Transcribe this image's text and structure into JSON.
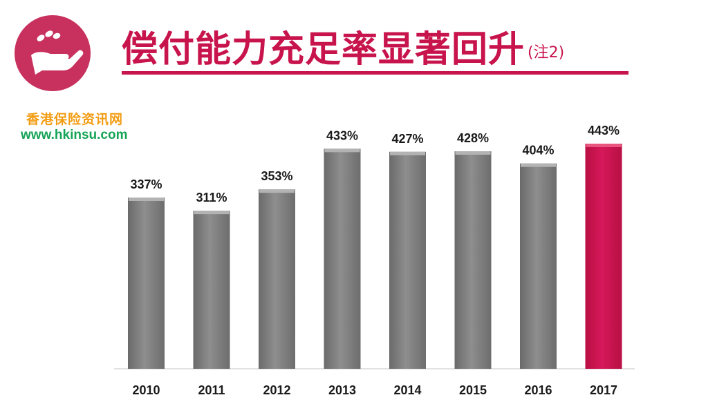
{
  "header": {
    "title": "偿付能力充足率显著回升",
    "title_note": "(注2)",
    "logo_icon": "hand-coins-icon"
  },
  "watermark": {
    "name": "香港保险资讯网",
    "url": "www.hkinsu.com"
  },
  "colors": {
    "accent": "#c8144c",
    "bar_default": "#7f7f7f",
    "bar_highlight": "#d0154e",
    "watermark_name": "#f39c12",
    "watermark_url": "#15a356"
  },
  "chart_data": {
    "type": "bar",
    "categories": [
      "2010",
      "2011",
      "2012",
      "2013",
      "2014",
      "2015",
      "2016",
      "2017"
    ],
    "values": [
      337,
      311,
      353,
      433,
      427,
      428,
      404,
      443
    ],
    "value_labels": [
      "337%",
      "311%",
      "353%",
      "433%",
      "427%",
      "428%",
      "404%",
      "443%"
    ],
    "highlight_index": 7,
    "ylim": [
      0,
      450
    ],
    "title": "",
    "xlabel": "",
    "ylabel": "",
    "grid": false
  }
}
